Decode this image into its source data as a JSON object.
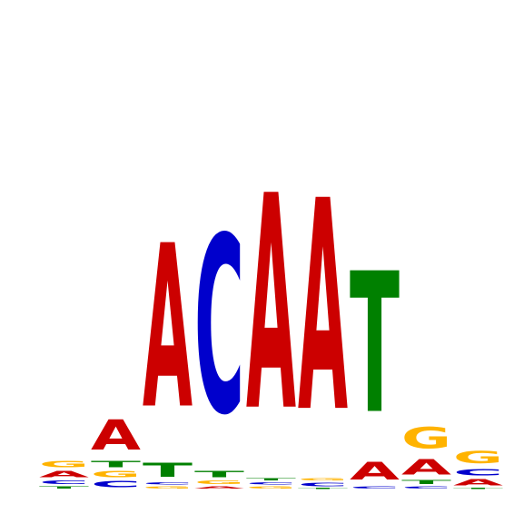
{
  "logo": {
    "colors": {
      "A": "#cc0000",
      "C": "#0000cc",
      "G": "#ffb300",
      "T": "#008000"
    },
    "max_bits": 2.0,
    "positions": [
      [
        {
          "base": "T",
          "bits": 0.02
        },
        {
          "base": "C",
          "bits": 0.03
        },
        {
          "base": "A",
          "bits": 0.05
        },
        {
          "base": "G",
          "bits": 0.05
        }
      ],
      [
        {
          "base": "C",
          "bits": 0.05
        },
        {
          "base": "G",
          "bits": 0.05
        },
        {
          "base": "T",
          "bits": 0.05
        },
        {
          "base": "A",
          "bits": 0.24
        }
      ],
      [
        {
          "base": "G",
          "bits": 0.02
        },
        {
          "base": "C",
          "bits": 0.02
        },
        {
          "base": "T",
          "bits": 0.11
        },
        {
          "base": "A",
          "bits": 1.3
        }
      ],
      [
        {
          "base": "A",
          "bits": 0.02
        },
        {
          "base": "G",
          "bits": 0.03
        },
        {
          "base": "T",
          "bits": 0.05
        },
        {
          "base": "C",
          "bits": 1.41
        }
      ],
      [
        {
          "base": "G",
          "bits": 0.02
        },
        {
          "base": "C",
          "bits": 0.02
        },
        {
          "base": "T",
          "bits": 0.02
        },
        {
          "base": "A",
          "bits": 1.71
        }
      ],
      [
        {
          "base": "T",
          "bits": 0.01
        },
        {
          "base": "C",
          "bits": 0.03
        },
        {
          "base": "G",
          "bits": 0.02
        },
        {
          "base": "A",
          "bits": 1.68
        }
      ],
      [
        {
          "base": "C",
          "bits": 0.02
        },
        {
          "base": "A",
          "bits": 0.14
        },
        {
          "base": "T",
          "bits": 1.12
        }
      ],
      [
        {
          "base": "C",
          "bits": 0.02
        },
        {
          "base": "T",
          "bits": 0.03
        },
        {
          "base": "A",
          "bits": 0.12
        },
        {
          "base": "G",
          "bits": 0.17
        }
      ],
      [
        {
          "base": "T",
          "bits": 0.01
        },
        {
          "base": "A",
          "bits": 0.05
        },
        {
          "base": "C",
          "bits": 0.05
        },
        {
          "base": "G",
          "bits": 0.1
        }
      ]
    ]
  }
}
